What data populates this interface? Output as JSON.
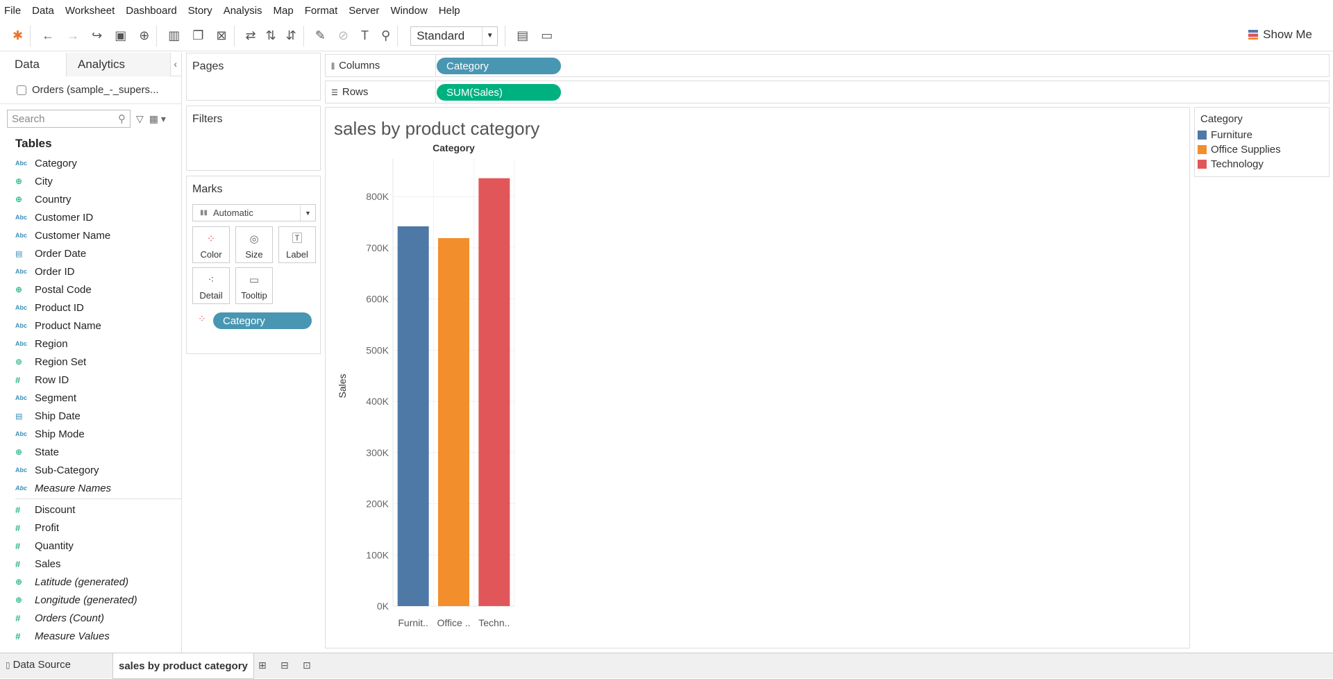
{
  "menu": [
    "File",
    "Data",
    "Worksheet",
    "Dashboard",
    "Story",
    "Analysis",
    "Map",
    "Format",
    "Server",
    "Window",
    "Help"
  ],
  "toolbar": {
    "fit": "Standard",
    "show_me": "Show Me"
  },
  "left_panel": {
    "tabs": [
      "Data",
      "Analytics"
    ],
    "datasource": "Orders (sample_-_supers...",
    "search_placeholder": "Search",
    "tables_header": "Tables",
    "dimensions": [
      {
        "icon": "Abc",
        "name": "Category"
      },
      {
        "icon": "globe",
        "name": "City"
      },
      {
        "icon": "globe",
        "name": "Country"
      },
      {
        "icon": "Abc",
        "name": "Customer ID"
      },
      {
        "icon": "Abc",
        "name": "Customer Name"
      },
      {
        "icon": "calendar",
        "name": "Order Date"
      },
      {
        "icon": "Abc",
        "name": "Order ID"
      },
      {
        "icon": "globe",
        "name": "Postal Code"
      },
      {
        "icon": "Abc",
        "name": "Product ID"
      },
      {
        "icon": "Abc",
        "name": "Product Name"
      },
      {
        "icon": "Abc",
        "name": "Region"
      },
      {
        "icon": "set",
        "name": "Region Set"
      },
      {
        "icon": "#",
        "name": "Row ID"
      },
      {
        "icon": "Abc",
        "name": "Segment"
      },
      {
        "icon": "calendar",
        "name": "Ship Date"
      },
      {
        "icon": "Abc",
        "name": "Ship Mode"
      },
      {
        "icon": "globe",
        "name": "State"
      },
      {
        "icon": "Abc",
        "name": "Sub-Category"
      },
      {
        "icon": "Abc",
        "name": "Measure Names",
        "italic": true
      }
    ],
    "measures": [
      {
        "icon": "#",
        "name": "Discount"
      },
      {
        "icon": "#",
        "name": "Profit"
      },
      {
        "icon": "#",
        "name": "Quantity"
      },
      {
        "icon": "#",
        "name": "Sales"
      },
      {
        "icon": "globe",
        "name": "Latitude (generated)",
        "italic": true
      },
      {
        "icon": "globe",
        "name": "Longitude (generated)",
        "italic": true
      },
      {
        "icon": "#",
        "name": "Orders (Count)",
        "italic": true
      },
      {
        "icon": "#",
        "name": "Measure Values",
        "italic": true
      }
    ]
  },
  "cards": {
    "pages": "Pages",
    "filters": "Filters",
    "marks": "Marks",
    "mark_type": "Automatic",
    "mark_buttons": [
      "Color",
      "Size",
      "Label",
      "Detail",
      "Tooltip"
    ],
    "marks_pill": "Category"
  },
  "shelves": {
    "columns_label": "Columns",
    "columns_pill": "Category",
    "rows_label": "Rows",
    "rows_pill": "SUM(Sales)"
  },
  "colors": {
    "dim_pill": "#4996b2",
    "measure_pill": "#00b180",
    "furniture": "#4e79a7",
    "office": "#f28e2b",
    "technology": "#e15759"
  },
  "chart_data": {
    "type": "bar",
    "title": "sales by product category",
    "xlabel": "Category",
    "ylabel": "Sales",
    "categories": [
      "Furnit..",
      "Office ..",
      "Techn.."
    ],
    "full_categories": [
      "Furniture",
      "Office Supplies",
      "Technology"
    ],
    "values": [
      742000,
      719000,
      836000
    ],
    "ylim": [
      0,
      860000
    ],
    "yticks": [
      0,
      100000,
      200000,
      300000,
      400000,
      500000,
      600000,
      700000,
      800000
    ],
    "ytick_labels": [
      "0K",
      "100K",
      "200K",
      "300K",
      "400K",
      "500K",
      "600K",
      "700K",
      "800K"
    ],
    "colors": [
      "#4e79a7",
      "#f28e2b",
      "#e15759"
    ],
    "grid": true
  },
  "legend": {
    "title": "Category",
    "items": [
      {
        "name": "Furniture",
        "color": "#4e79a7"
      },
      {
        "name": "Office Supplies",
        "color": "#f28e2b"
      },
      {
        "name": "Technology",
        "color": "#e15759"
      }
    ]
  },
  "bottom": {
    "datasource_tab": "Data Source",
    "sheet_tab": "sales by product category"
  }
}
